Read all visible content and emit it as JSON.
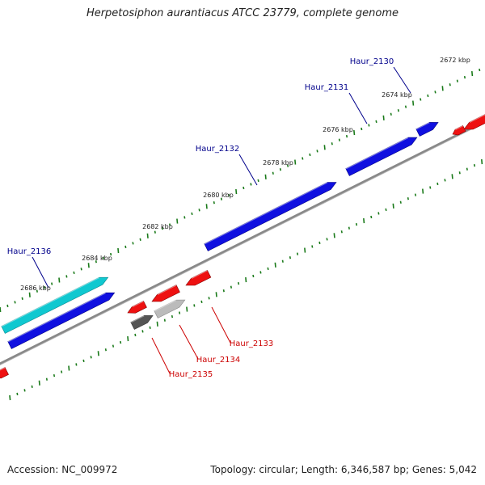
{
  "title": "Herpetosiphon aurantiacus ATCC 23779, complete genome",
  "footer": {
    "accession": "Accession: NC_009972",
    "summary": "Topology: circular; Length: 6,346,587 bp; Genes: 5,042"
  },
  "colors": {
    "forward_gene": "#1010e0",
    "reverse_gene": "#ee1111",
    "highlight_gene": "#10c8d0",
    "dark_gray_gene": "#555555",
    "light_gray_gene": "#bbbbbb",
    "backbone": "#888888",
    "tick": "#1a7a1a",
    "label_forward": "#00008b",
    "label_reverse": "#cc0000"
  },
  "scale_labels": [
    "2672 kbp",
    "2674 kbp",
    "2676 kbp",
    "2678 kbp",
    "2680 kbp",
    "2682 kbp",
    "2684 kbp",
    "2686 kbp"
  ],
  "gene_labels": [
    {
      "name": "Haur_2130",
      "strand": "forward"
    },
    {
      "name": "Haur_2131",
      "strand": "forward"
    },
    {
      "name": "Haur_2132",
      "strand": "forward"
    },
    {
      "name": "Haur_2136",
      "strand": "forward"
    },
    {
      "name": "Haur_2133",
      "strand": "reverse"
    },
    {
      "name": "Haur_2134",
      "strand": "reverse"
    },
    {
      "name": "Haur_2135",
      "strand": "reverse"
    }
  ]
}
